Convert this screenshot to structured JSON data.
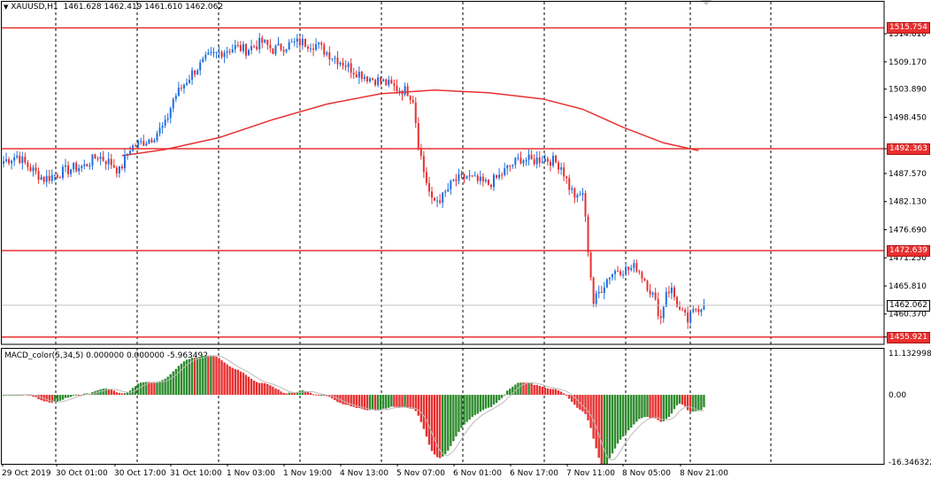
{
  "header": {
    "symbol": "XAUUSD,H1",
    "open": "1461.628",
    "high": "1462.419",
    "low": "1461.610",
    "close": "1462.062",
    "dropdown_glyph": "▼"
  },
  "indicator": {
    "label": "MACD_color(5,34,5) 0.000000 0.000000 -5.963492"
  },
  "colors": {
    "bull": "#1e6fe0",
    "bear": "#e83030",
    "line": "#e83030",
    "macd_pos": "#2e8b2e",
    "macd_neg": "#e83030",
    "signal": "#bbbbbb",
    "grid": "#000000",
    "current_price_line": "#c0c0c0"
  },
  "price_axis": {
    "ticks": [
      "1514.610",
      "1509.170",
      "1503.890",
      "1498.450",
      "1492.363",
      "1487.570",
      "1482.130",
      "1476.690",
      "1471.250",
      "1465.810",
      "1460.370",
      "1455.921"
    ]
  },
  "levels": [
    {
      "label": "1515.754",
      "value": 1515.754
    },
    {
      "label": "1492.363",
      "value": 1492.363
    },
    {
      "label": "1472.639",
      "value": 1472.639
    },
    {
      "label": "1455.921",
      "value": 1455.921
    }
  ],
  "current_price": {
    "label": "1462.062",
    "value": 1462.062
  },
  "macd_axis": {
    "ticks": [
      "11.132998",
      "0.00",
      "-16.346322"
    ]
  },
  "time_axis": {
    "labels": [
      "29 Oct 2019",
      "30 Oct 01:00",
      "30 Oct 17:00",
      "31 Oct 10:00",
      "1 Nov 03:00",
      "1 Nov 19:00",
      "4 Nov 13:00",
      "5 Nov 07:00",
      "6 Nov 01:00",
      "6 Nov 17:00",
      "7 Nov 11:00",
      "8 Nov 05:00",
      "8 Nov 21:00"
    ]
  },
  "chart_data": {
    "type": "candlestick",
    "symbol": "XAUUSD",
    "timeframe": "H1",
    "ylim": [
      1454.5,
      1520.8
    ],
    "macd_ylim": [
      -16.35,
      11.13
    ],
    "close_path": [
      [
        0,
        1490.0
      ],
      [
        5,
        1491.0
      ],
      [
        10,
        1488.5
      ],
      [
        15,
        1486.5
      ],
      [
        20,
        1487.5
      ],
      [
        25,
        1488.5
      ],
      [
        30,
        1489.0
      ],
      [
        35,
        1491.0
      ],
      [
        40,
        1489.5
      ],
      [
        43,
        1488.0
      ],
      [
        47,
        1492.5
      ],
      [
        55,
        1494.5
      ],
      [
        60,
        1497.0
      ],
      [
        63,
        1502.0
      ],
      [
        70,
        1507.0
      ],
      [
        76,
        1510.0
      ],
      [
        80,
        1511.0
      ],
      [
        86,
        1512.0
      ],
      [
        90,
        1511.5
      ],
      [
        96,
        1513.0
      ],
      [
        100,
        1511.5
      ],
      [
        106,
        1512.5
      ],
      [
        110,
        1513.0
      ],
      [
        116,
        1512.5
      ],
      [
        120,
        1511.0
      ],
      [
        126,
        1509.0
      ],
      [
        130,
        1507.5
      ],
      [
        136,
        1506.0
      ],
      [
        140,
        1505.5
      ],
      [
        146,
        1504.0
      ],
      [
        150,
        1503.5
      ],
      [
        152,
        1502.0
      ],
      [
        154,
        1493.5
      ],
      [
        156,
        1488.0
      ],
      [
        159,
        1482.0
      ],
      [
        163,
        1483.0
      ],
      [
        167,
        1486.0
      ],
      [
        172,
        1487.0
      ],
      [
        176,
        1486.0
      ],
      [
        180,
        1485.5
      ],
      [
        184,
        1487.0
      ],
      [
        188,
        1489.0
      ],
      [
        192,
        1490.5
      ],
      [
        196,
        1490.0
      ],
      [
        200,
        1490.5
      ],
      [
        204,
        1490.0
      ],
      [
        207,
        1489.0
      ],
      [
        210,
        1485.0
      ],
      [
        213,
        1482.5
      ],
      [
        215,
        1484.0
      ],
      [
        217,
        1473.0
      ],
      [
        219,
        1462.5
      ],
      [
        221,
        1464.5
      ],
      [
        225,
        1468.0
      ],
      [
        228,
        1469.0
      ],
      [
        232,
        1469.0
      ],
      [
        235,
        1469.5
      ],
      [
        238,
        1467.0
      ],
      [
        241,
        1464.0
      ],
      [
        244,
        1459.5
      ],
      [
        246,
        1465.0
      ],
      [
        248,
        1465.0
      ],
      [
        251,
        1461.0
      ],
      [
        254,
        1459.0
      ],
      [
        257,
        1461.5
      ],
      [
        260,
        1462.06
      ]
    ],
    "moving_average": {
      "values": [
        [
          44,
          1491.0
        ],
        [
          60,
          1492.2
        ],
        [
          80,
          1494.5
        ],
        [
          100,
          1498.0
        ],
        [
          120,
          1501.0
        ],
        [
          140,
          1503.0
        ],
        [
          160,
          1503.7
        ],
        [
          180,
          1503.2
        ],
        [
          200,
          1502.0
        ],
        [
          215,
          1500.0
        ],
        [
          230,
          1496.5
        ],
        [
          245,
          1493.5
        ],
        [
          258,
          1492.0
        ]
      ]
    },
    "levels": [
      1515.754,
      1492.363,
      1472.639,
      1455.921
    ],
    "current_price": 1462.062
  }
}
